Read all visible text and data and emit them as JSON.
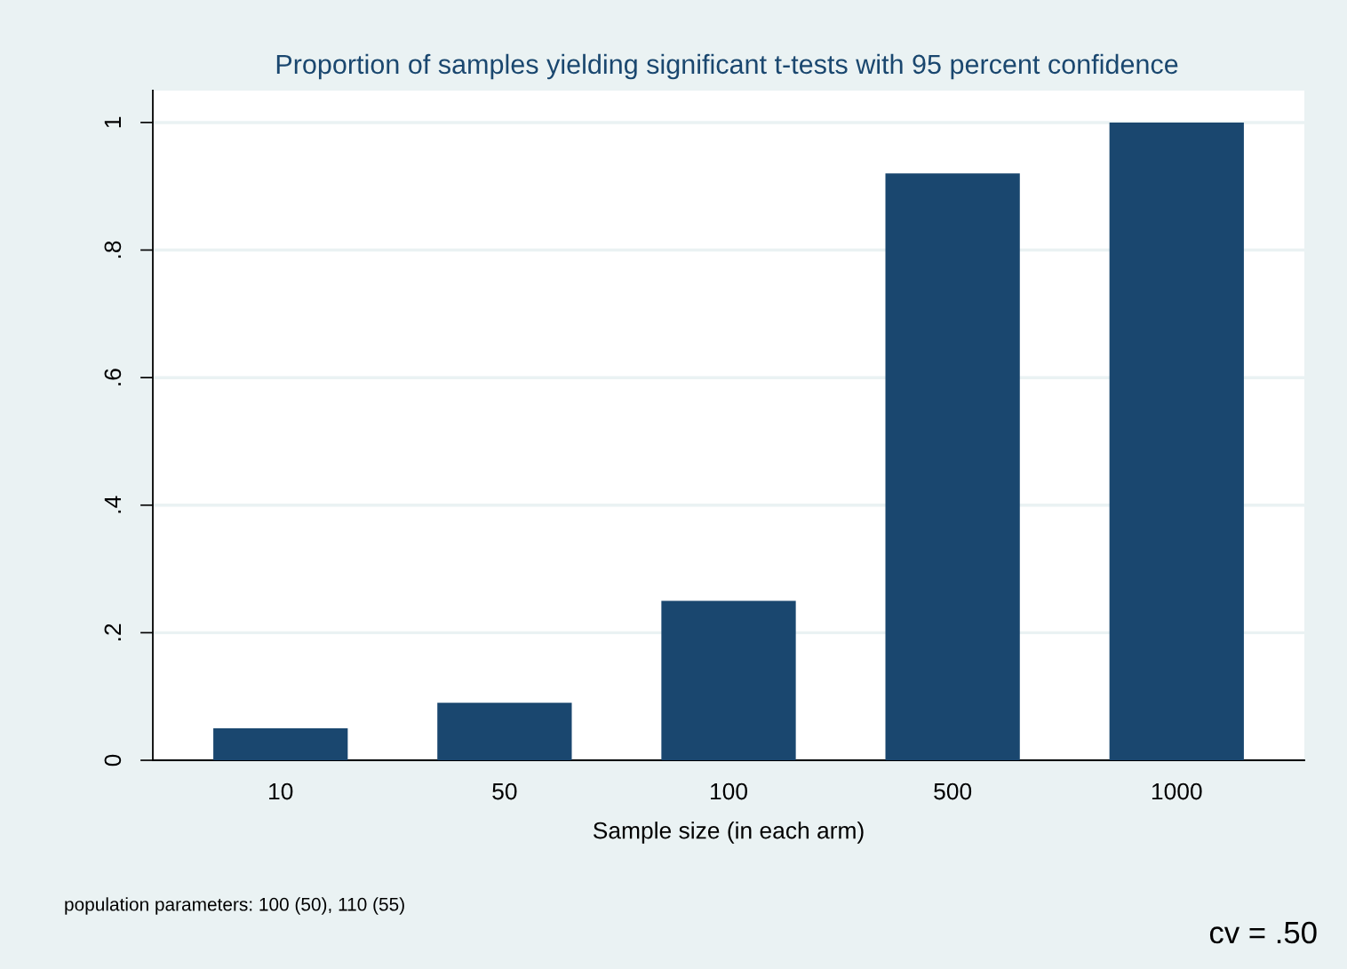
{
  "chart_data": {
    "type": "bar",
    "title": "Proportion of samples yielding significant t-tests with 95 percent confidence",
    "xlabel": "Sample size (in each arm)",
    "categories": [
      "10",
      "50",
      "100",
      "500",
      "1000"
    ],
    "values": [
      0.05,
      0.09,
      0.25,
      0.92,
      1.0
    ],
    "color": "#1a476f",
    "ylim": [
      0,
      1.05
    ],
    "yticks": [
      0,
      {
        "value": 0.2,
        "label": ".2"
      },
      {
        "value": 0.4,
        "label": ".4"
      },
      {
        "value": 0.6,
        "label": ".6"
      },
      {
        "value": 0.8,
        "label": ".8"
      },
      1
    ],
    "grid": "y",
    "annotations": [
      "population parameters: 100 (50), 110 (55)",
      "cv = .50"
    ]
  }
}
